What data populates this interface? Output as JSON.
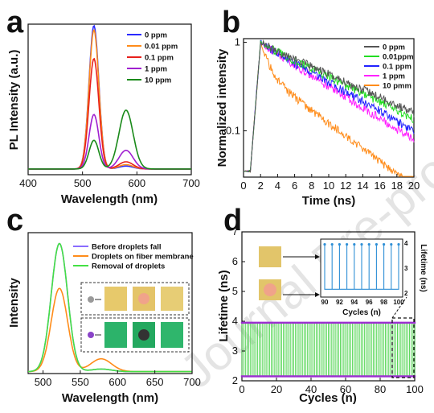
{
  "watermark": "Journal Pre-proof",
  "chart_data": [
    {
      "panel": "a",
      "type": "line",
      "xlabel": "Wavelength (nm)",
      "ylabel": "PL Intensity (a.u.)",
      "xlim": [
        400,
        700
      ],
      "ylim": [
        0,
        1.05
      ],
      "xticks": [
        400,
        500,
        600,
        700
      ],
      "series": [
        {
          "name": "0 ppm",
          "color": "#2a2aff",
          "peak1": 1.0,
          "peak2": 0.02
        },
        {
          "name": "0.01 ppm",
          "color": "#ff8c1a",
          "peak1": 0.97,
          "peak2": 0.03
        },
        {
          "name": "0.1 ppm",
          "color": "#e8201c",
          "peak1": 0.77,
          "peak2": 0.05
        },
        {
          "name": "1 ppm",
          "color": "#a020d0",
          "peak1": 0.38,
          "peak2": 0.13
        },
        {
          "name": "10 ppm",
          "color": "#1a8a1a",
          "peak1": 0.2,
          "peak2": 0.41
        }
      ]
    },
    {
      "panel": "b",
      "type": "line",
      "xlabel": "Time (ns)",
      "ylabel": "Normalized intensity",
      "xlim": [
        0,
        20
      ],
      "ylim": [
        0.03,
        1.1
      ],
      "yscale": "log",
      "xticks": [
        0,
        2,
        4,
        6,
        8,
        10,
        12,
        14,
        16,
        18,
        20
      ],
      "yticks": [
        1,
        0.1
      ],
      "yticklabels": [
        "1",
        "0.1"
      ],
      "series": [
        {
          "name": "0 ppm",
          "color": "#555555",
          "tail": 0.13
        },
        {
          "name": "0.01ppm",
          "color": "#22dd22",
          "tail": 0.11
        },
        {
          "name": "0.1 ppm",
          "color": "#2222ff",
          "tail": 0.078
        },
        {
          "name": "1 ppm",
          "color": "#ff22ff",
          "tail": 0.06
        },
        {
          "name": "10 pmm",
          "color": "#ff8c1a",
          "tail": 0.038
        }
      ]
    },
    {
      "panel": "c",
      "type": "line",
      "xlabel": "Wavelength (nm)",
      "ylabel": "Intensity",
      "xlim": [
        480,
        700
      ],
      "ylim": [
        0,
        1.1
      ],
      "xticks": [
        500,
        550,
        600,
        650,
        700
      ],
      "series": [
        {
          "name": "Before droplets fall",
          "color": "#8a6cff",
          "peak1": 1.0,
          "peak2": 0.02
        },
        {
          "name": "Droplets on fiber membrane",
          "color": "#ff8c1a",
          "peak1": 0.65,
          "peak2": 0.1
        },
        {
          "name": "Removal of droplets",
          "color": "#44e044",
          "peak1": 1.0,
          "peak2": 0.02
        }
      ]
    },
    {
      "panel": "d",
      "type": "line",
      "xlabel": "Cycles (n)",
      "ylabel": "Lifetime (ns)",
      "xlim": [
        0,
        100
      ],
      "ylim": [
        2,
        7
      ],
      "xticks": [
        0,
        20,
        40,
        60,
        80,
        100
      ],
      "yticks": [
        2,
        3,
        4,
        5,
        6,
        7
      ],
      "high": 3.95,
      "low": 2.15,
      "cycles": 100,
      "inset": {
        "xlabel": "Cycles (n)",
        "ylabel": "Lifetime (ns)",
        "xlim": [
          90,
          100
        ],
        "xticks": [
          90,
          92,
          94,
          96,
          98,
          100
        ],
        "ylim": [
          2,
          4
        ],
        "yticks": [
          2,
          3,
          4
        ]
      }
    }
  ]
}
